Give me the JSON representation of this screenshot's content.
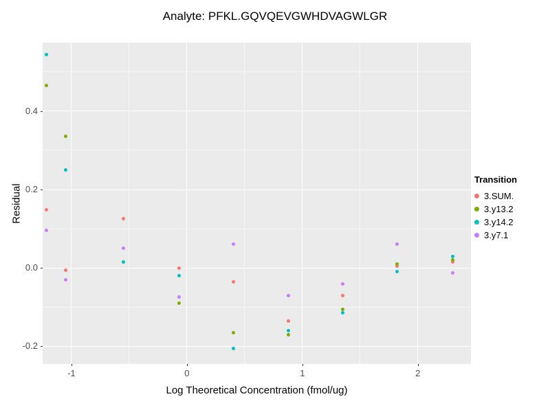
{
  "chart_data": {
    "type": "scatter",
    "title": "Analyte: PFKL.GQVQEVGWHDVAGWLGR",
    "xlabel": "Log Theoretical Concentration (fmol/ug)",
    "ylabel": "Residual",
    "legend_title": "Transition",
    "legend_position": "right",
    "panel_bg": "#EBEBEB",
    "grid_color": "#FFFFFF",
    "xlim": [
      -1.25,
      2.46
    ],
    "ylim": [
      -0.245,
      0.575
    ],
    "x_ticks": [
      -1,
      0,
      1,
      2
    ],
    "x_tick_labels": [
      "-1",
      "0",
      "1",
      "2"
    ],
    "y_ticks": [
      -0.2,
      0.0,
      0.2,
      0.4
    ],
    "y_tick_labels": [
      "-0.2",
      "0.0",
      "0.2",
      "0.4"
    ],
    "x_minor": [
      -0.5,
      0.5,
      1.5
    ],
    "y_minor": [
      -0.1,
      0.1,
      0.3,
      0.5
    ],
    "x": [
      -1.22,
      -1.05,
      -0.55,
      -0.07,
      0.4,
      0.88,
      1.35,
      1.82,
      2.3
    ],
    "series": [
      {
        "name": "3.SUM.",
        "color": "#F8766D",
        "values": [
          0.148,
          -0.005,
          0.125,
          0.0,
          -0.035,
          -0.135,
          -0.07,
          0.005,
          0.015
        ]
      },
      {
        "name": "3.y13.2",
        "color": "#7CAE00",
        "values": [
          0.465,
          0.335,
          0.015,
          -0.09,
          -0.165,
          -0.17,
          -0.105,
          0.01,
          0.02
        ]
      },
      {
        "name": "3.y14.2",
        "color": "#00BFC4",
        "values": [
          0.545,
          0.25,
          0.015,
          -0.02,
          -0.205,
          -0.16,
          -0.115,
          -0.01,
          0.03
        ]
      },
      {
        "name": "3.y7.1",
        "color": "#C77CFF",
        "values": [
          0.095,
          -0.03,
          0.05,
          -0.075,
          0.06,
          -0.07,
          -0.04,
          0.06,
          -0.013
        ]
      }
    ]
  }
}
